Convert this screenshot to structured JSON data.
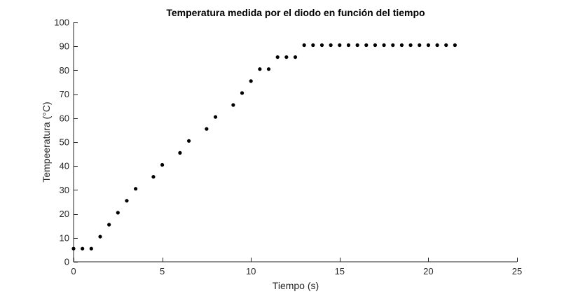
{
  "chart_data": {
    "type": "scatter",
    "title": "Temperatura medida por el diodo en función del tiempo",
    "xlabel": "Tiempo (s)",
    "ylabel": "Tempeeratura (°C)",
    "xlim": [
      0,
      25
    ],
    "ylim": [
      0,
      100
    ],
    "xticks": [
      0,
      5,
      10,
      15,
      20,
      25
    ],
    "yticks": [
      0,
      10,
      20,
      30,
      40,
      50,
      60,
      70,
      80,
      90,
      100
    ],
    "grid": false,
    "marker_color": "#000000",
    "axis_color": "#262626",
    "series": [
      {
        "x": [
          0,
          0.5,
          1,
          1.5,
          2,
          2.5,
          3,
          3.5,
          4.5,
          5,
          6,
          6.5,
          7.5,
          8,
          9,
          9.5,
          10,
          10.5,
          11,
          11.5,
          12,
          12.5,
          13,
          13.5,
          14,
          14.5,
          15,
          15.5,
          16,
          16.5,
          17,
          17.5,
          18,
          18.5,
          19,
          19.5,
          20,
          20.5,
          21,
          21.5
        ],
        "y": [
          5.5,
          5.5,
          5.5,
          10.5,
          15.5,
          20.5,
          25.5,
          30.5,
          35.5,
          40.5,
          45.5,
          50.5,
          55.5,
          60.5,
          65.5,
          70.5,
          75.5,
          80.5,
          80.5,
          85.5,
          85.5,
          85.5,
          90.5,
          90.5,
          90.5,
          90.5,
          90.5,
          90.5,
          90.5,
          90.5,
          90.5,
          90.5,
          90.5,
          90.5,
          90.5,
          90.5,
          90.5,
          90.5,
          90.5,
          90.5
        ]
      }
    ]
  }
}
